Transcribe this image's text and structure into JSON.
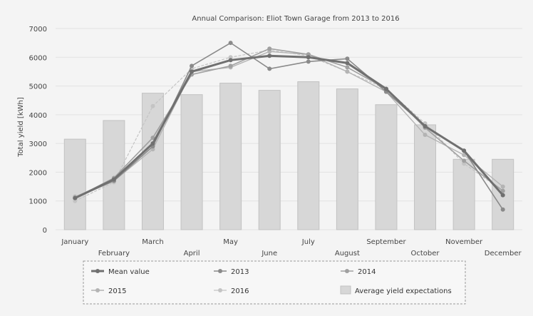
{
  "chart_data": {
    "type": "bar",
    "title": "Annual Comparison: Eliot Town Garage from 2013 to 2016",
    "ylabel": "Total yield [kWh]",
    "xlabel": "",
    "ylim": [
      0,
      7000
    ],
    "yticks": [
      0,
      1000,
      2000,
      3000,
      4000,
      5000,
      6000,
      7000
    ],
    "ytick_labels": [
      "0",
      "1000",
      "2000",
      "3000",
      "4000",
      "5000",
      "6000",
      "7000"
    ],
    "categories": [
      "January",
      "February",
      "March",
      "April",
      "May",
      "June",
      "July",
      "August",
      "September",
      "October",
      "November",
      "December"
    ],
    "grid": true,
    "legend_position": "bottom",
    "bar_series": {
      "name": "Average yield expectations",
      "values": [
        3150,
        3800,
        4750,
        4700,
        5100,
        4850,
        5150,
        4900,
        4350,
        3650,
        2450,
        2450
      ]
    },
    "series": [
      {
        "name": "Mean value",
        "values": [
          1100,
          1750,
          3000,
          5500,
          5900,
          6050,
          6000,
          5800,
          4900,
          3600,
          2750,
          1200
        ]
      },
      {
        "name": "2013",
        "values": [
          1100,
          1700,
          2900,
          5700,
          6500,
          5600,
          5850,
          5950,
          4800,
          3600,
          2750,
          700
        ]
      },
      {
        "name": "2014",
        "values": [
          1100,
          1800,
          3200,
          5400,
          5700,
          6300,
          6100,
          5650,
          4900,
          3550,
          2400,
          1350
        ]
      },
      {
        "name": "2015",
        "values": [
          1150,
          1700,
          2800,
          5500,
          5650,
          6200,
          6100,
          5500,
          4800,
          3300,
          2600,
          1500
        ]
      },
      {
        "name": "2016",
        "values": [
          1000,
          1650,
          4300,
          5600,
          6000,
          6250,
          6050,
          5500,
          4900,
          3700,
          2300,
          1350
        ]
      }
    ],
    "colors": {
      "bar_fill": "#d7d7d7",
      "bar_stroke": "#c2c2c2",
      "Mean value": "#707070",
      "2013": "#8a8a8a",
      "2014": "#a0a0a0",
      "2015": "#b4b4b4",
      "2016": "#c4c4c4",
      "grid": "#e2e2e2"
    }
  }
}
